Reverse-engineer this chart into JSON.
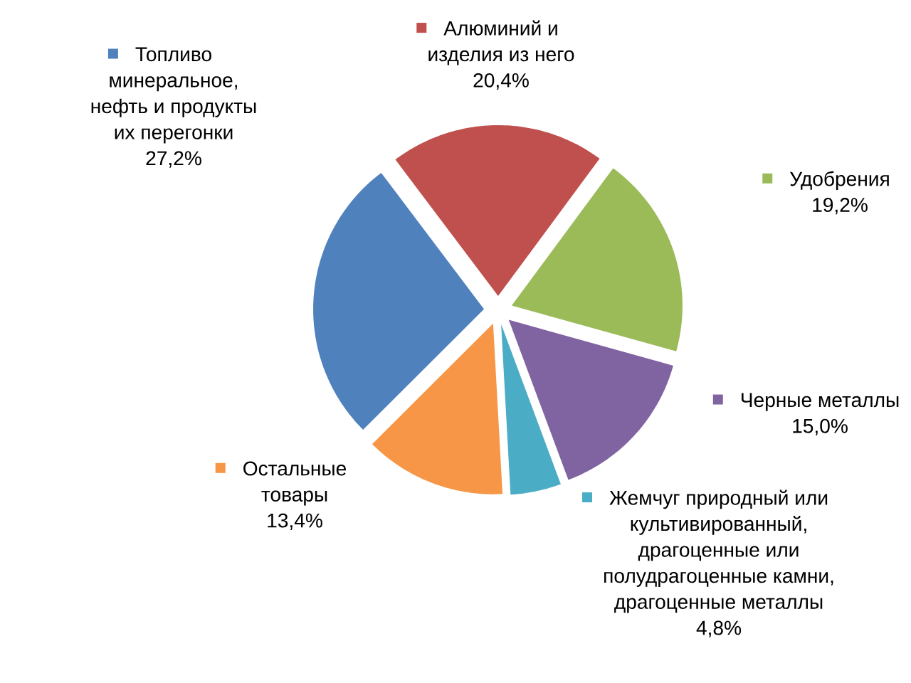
{
  "chart_data": {
    "type": "pie",
    "categories": [
      "Алюминий и изделия из него",
      "Удобрения",
      "Черные металлы",
      "Жемчуг природный или культивированный, драгоценные или полудрагоценные камни, драгоценные металлы",
      "Остальные товары",
      "Топливо минеральное, нефть и продукты их перегонки"
    ],
    "values": [
      20.4,
      19.2,
      15.0,
      4.8,
      13.4,
      27.2
    ],
    "colors": [
      "#c0504d",
      "#9bbb59",
      "#8064a2",
      "#4bacc6",
      "#f79646",
      "#4f81bd"
    ],
    "value_labels": [
      "20,4%",
      "19,2%",
      "15,0%",
      "4,8%",
      "13,4%",
      "27,2%"
    ],
    "legend": true
  }
}
